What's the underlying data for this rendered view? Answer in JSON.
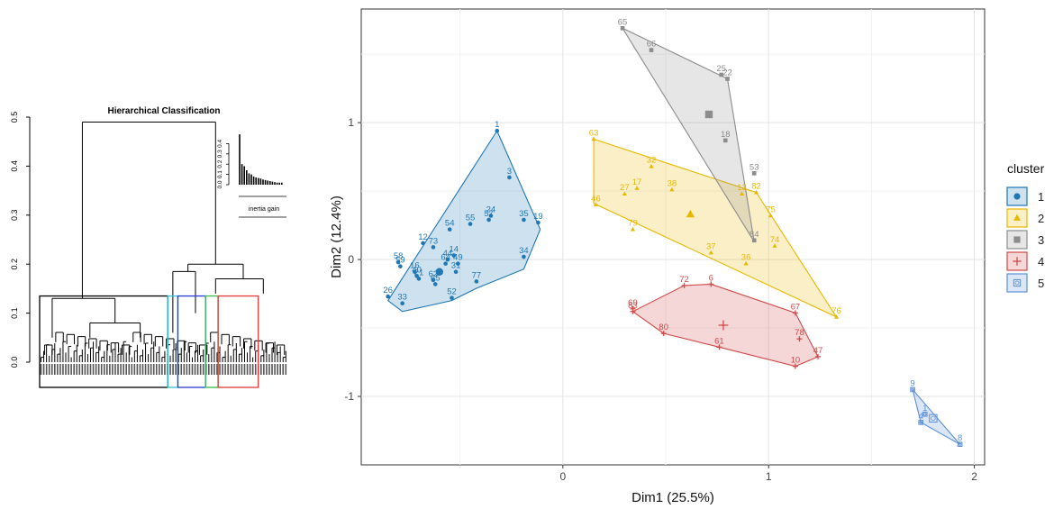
{
  "chart_data": [
    {
      "type": "dendrogram",
      "title": "Hierarchical Classification",
      "ylim": [
        0,
        0.5
      ],
      "yticks": [
        "0.0",
        "0.1",
        "0.2",
        "0.3",
        "0.4",
        "0.5"
      ],
      "ytick_values": [
        0,
        0.1,
        0.2,
        0.3,
        0.4,
        0.5
      ],
      "root_height": 0.49,
      "cut_height": 0.135,
      "clusters": [
        {
          "id": 1,
          "color": "#000000",
          "from": 0.0,
          "to": 0.51
        },
        {
          "id": 2,
          "color": "#33c4d8",
          "from": 0.51,
          "to": 0.55
        },
        {
          "id": 3,
          "color": "#2a3ad6",
          "from": 0.55,
          "to": 0.66
        },
        {
          "id": 4,
          "color": "#3ab84a",
          "from": 0.66,
          "to": 0.71
        },
        {
          "id": 5,
          "color": "#e03a3a",
          "from": 0.71,
          "to": 0.87
        }
      ],
      "inset": {
        "xlabel": "inertia gain",
        "yticks": [
          "0.0",
          "0.1",
          "0.2",
          "0.3",
          "0.4"
        ],
        "ylim": [
          0,
          0.5
        ],
        "values": [
          0.49,
          0.2,
          0.18,
          0.14,
          0.11,
          0.1,
          0.08,
          0.07,
          0.065,
          0.06,
          0.05,
          0.045,
          0.04,
          0.035,
          0.03,
          0.025,
          0.02,
          0.02,
          0.02
        ]
      }
    },
    {
      "type": "scatter",
      "xlabel": "Dim1 (25.5%)",
      "ylabel": "Dim2 (12.4%)",
      "xlim": [
        -0.98,
        2.05
      ],
      "ylim": [
        -1.5,
        1.83
      ],
      "xticks": [
        0,
        1,
        2
      ],
      "yticks": [
        -1,
        0,
        1
      ],
      "grid": true,
      "legend": {
        "title": "cluster",
        "position": "right"
      },
      "series": [
        {
          "name": "1",
          "color": "#1f77b4",
          "centroid": [
            -0.6,
            -0.09
          ],
          "hull": [
            -0.32,
            0.94,
            -0.11,
            0.22,
            -0.19,
            -0.07,
            -0.42,
            -0.21,
            -0.54,
            -0.3,
            -0.78,
            -0.38,
            -0.85,
            -0.3
          ],
          "points": [
            {
              "label": "1",
              "x": -0.32,
              "y": 0.94
            },
            {
              "label": "3",
              "x": -0.26,
              "y": 0.6
            },
            {
              "label": "19",
              "x": -0.12,
              "y": 0.27
            },
            {
              "label": "35",
              "x": -0.19,
              "y": 0.29
            },
            {
              "label": "24",
              "x": -0.35,
              "y": 0.32
            },
            {
              "label": "57",
              "x": -0.36,
              "y": 0.29
            },
            {
              "label": "55",
              "x": -0.45,
              "y": 0.26
            },
            {
              "label": "54",
              "x": -0.55,
              "y": 0.22
            },
            {
              "label": "73",
              "x": -0.63,
              "y": 0.09
            },
            {
              "label": "12",
              "x": -0.68,
              "y": 0.12
            },
            {
              "label": "14",
              "x": -0.53,
              "y": 0.03
            },
            {
              "label": "44",
              "x": -0.56,
              "y": 0.0
            },
            {
              "label": "64",
              "x": -0.57,
              "y": -0.03
            },
            {
              "label": "49",
              "x": -0.51,
              "y": -0.03
            },
            {
              "label": "31",
              "x": -0.52,
              "y": -0.09
            },
            {
              "label": "77",
              "x": -0.42,
              "y": -0.16
            },
            {
              "label": "34",
              "x": -0.19,
              "y": 0.02
            },
            {
              "label": "58",
              "x": -0.8,
              "y": -0.02
            },
            {
              "label": "59",
              "x": -0.79,
              "y": -0.05
            },
            {
              "label": "16",
              "x": -0.72,
              "y": -0.09
            },
            {
              "label": "40",
              "x": -0.71,
              "y": -0.12
            },
            {
              "label": "21",
              "x": -0.7,
              "y": -0.14
            },
            {
              "label": "62",
              "x": -0.63,
              "y": -0.15
            },
            {
              "label": "65",
              "x": -0.62,
              "y": -0.18
            },
            {
              "label": "52",
              "x": -0.54,
              "y": -0.28
            },
            {
              "label": "26",
              "x": -0.85,
              "y": -0.27
            },
            {
              "label": "33",
              "x": -0.78,
              "y": -0.32
            }
          ]
        },
        {
          "name": "2",
          "color": "#e7b800",
          "centroid": [
            0.62,
            0.33
          ],
          "hull": [
            0.15,
            0.88,
            0.94,
            0.49,
            1.33,
            -0.42,
            0.15,
            0.41
          ],
          "points": [
            {
              "label": "63",
              "x": 0.15,
              "y": 0.88
            },
            {
              "label": "32",
              "x": 0.43,
              "y": 0.68
            },
            {
              "label": "17",
              "x": 0.36,
              "y": 0.52
            },
            {
              "label": "27",
              "x": 0.3,
              "y": 0.48
            },
            {
              "label": "38",
              "x": 0.53,
              "y": 0.51
            },
            {
              "label": "13",
              "x": 0.87,
              "y": 0.48
            },
            {
              "label": "82",
              "x": 0.94,
              "y": 0.49
            },
            {
              "label": "46",
              "x": 0.16,
              "y": 0.4
            },
            {
              "label": "79",
              "x": 0.34,
              "y": 0.22
            },
            {
              "label": "75",
              "x": 1.01,
              "y": 0.32
            },
            {
              "label": "74",
              "x": 1.03,
              "y": 0.1
            },
            {
              "label": "37",
              "x": 0.72,
              "y": 0.05
            },
            {
              "label": "36",
              "x": 0.89,
              "y": -0.03
            },
            {
              "label": "76",
              "x": 1.33,
              "y": -0.42
            }
          ]
        },
        {
          "name": "3",
          "color": "#8c8c8c",
          "centroid": [
            0.71,
            1.06
          ],
          "hull": [
            0.29,
            1.69,
            0.8,
            1.32,
            0.93,
            0.13
          ],
          "points": [
            {
              "label": "65",
              "x": 0.29,
              "y": 1.69
            },
            {
              "label": "66",
              "x": 0.43,
              "y": 1.53
            },
            {
              "label": "25",
              "x": 0.77,
              "y": 1.35
            },
            {
              "label": "22",
              "x": 0.8,
              "y": 1.32
            },
            {
              "label": "18",
              "x": 0.79,
              "y": 0.87
            },
            {
              "label": "53",
              "x": 0.93,
              "y": 0.63
            },
            {
              "label": "84",
              "x": 0.93,
              "y": 0.14
            }
          ]
        },
        {
          "name": "4",
          "color": "#d04a4a",
          "centroid": [
            0.78,
            -0.48
          ],
          "hull": [
            0.72,
            -0.18,
            1.13,
            -0.39,
            1.24,
            -0.71,
            1.13,
            -0.78,
            0.76,
            -0.64,
            0.49,
            -0.54,
            0.34,
            -0.38,
            0.59,
            -0.19
          ],
          "points": [
            {
              "label": "72",
              "x": 0.59,
              "y": -0.19
            },
            {
              "label": "6",
              "x": 0.72,
              "y": -0.18
            },
            {
              "label": "69",
              "x": 0.34,
              "y": -0.36
            },
            {
              "label": "83",
              "x": 0.34,
              "y": -0.38
            },
            {
              "label": "80",
              "x": 0.49,
              "y": -0.54
            },
            {
              "label": "61",
              "x": 0.76,
              "y": -0.64
            },
            {
              "label": "67",
              "x": 1.13,
              "y": -0.39
            },
            {
              "label": "78",
              "x": 1.15,
              "y": -0.58
            },
            {
              "label": "47",
              "x": 1.24,
              "y": -0.71
            },
            {
              "label": "10",
              "x": 1.13,
              "y": -0.78
            }
          ]
        },
        {
          "name": "5",
          "color": "#5b8fd6",
          "centroid": [
            1.8,
            -1.16
          ],
          "hull": [
            1.7,
            -0.95,
            1.93,
            -1.35,
            1.74,
            -1.19
          ],
          "points": [
            {
              "label": "9",
              "x": 1.7,
              "y": -0.95
            },
            {
              "label": "1",
              "x": 1.76,
              "y": -1.13
            },
            {
              "label": "8",
              "x": 1.93,
              "y": -1.35
            },
            {
              "label": "4",
              "x": 1.74,
              "y": -1.19
            }
          ]
        }
      ]
    }
  ]
}
